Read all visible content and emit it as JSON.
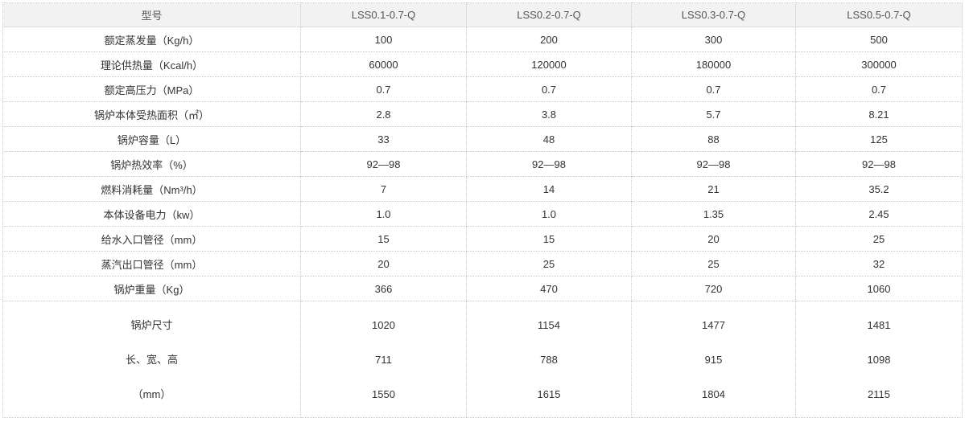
{
  "header": [
    "型号",
    "LSS0.1-0.7-Q",
    "LSS0.2-0.7-Q",
    "LSS0.3-0.7-Q",
    "LSS0.5-0.7-Q"
  ],
  "rows": [
    [
      "额定蒸发量（Kg/h）",
      "100",
      "200",
      "300",
      "500"
    ],
    [
      "理论供热量（Kcal/h）",
      "60000",
      "120000",
      "180000",
      "300000"
    ],
    [
      "额定高压力（MPa）",
      "0.7",
      "0.7",
      "0.7",
      "0.7"
    ],
    [
      "锅炉本体受热面积（㎡）",
      "2.8",
      "3.8",
      "5.7",
      "8.21"
    ],
    [
      "锅炉容量（L）",
      "33",
      "48",
      "88",
      "125"
    ],
    [
      "锅炉热效率（%）",
      "92—98",
      "92—98",
      "92—98",
      "92—98"
    ],
    [
      "燃料消耗量（Nm³/h）",
      "7",
      "14",
      "21",
      "35.2"
    ],
    [
      "本体设备电力（kw）",
      "1.0",
      "1.0",
      "1.35",
      "2.45"
    ],
    [
      "给水入口管径（mm）",
      "15",
      "15",
      "20",
      "25"
    ],
    [
      "蒸汽出口管径（mm）",
      "20",
      "25",
      "25",
      "32"
    ],
    [
      "锅炉重量（Kg）",
      "366",
      "470",
      "720",
      "1060"
    ]
  ],
  "dimensions": {
    "label": [
      "锅炉尺寸",
      "长、宽、高",
      "（mm）"
    ],
    "values": [
      [
        "1020",
        "711",
        "1550"
      ],
      [
        "1154",
        "788",
        "1615"
      ],
      [
        "1477",
        "915",
        "1804"
      ],
      [
        "1481",
        "1098",
        "2115"
      ]
    ]
  }
}
